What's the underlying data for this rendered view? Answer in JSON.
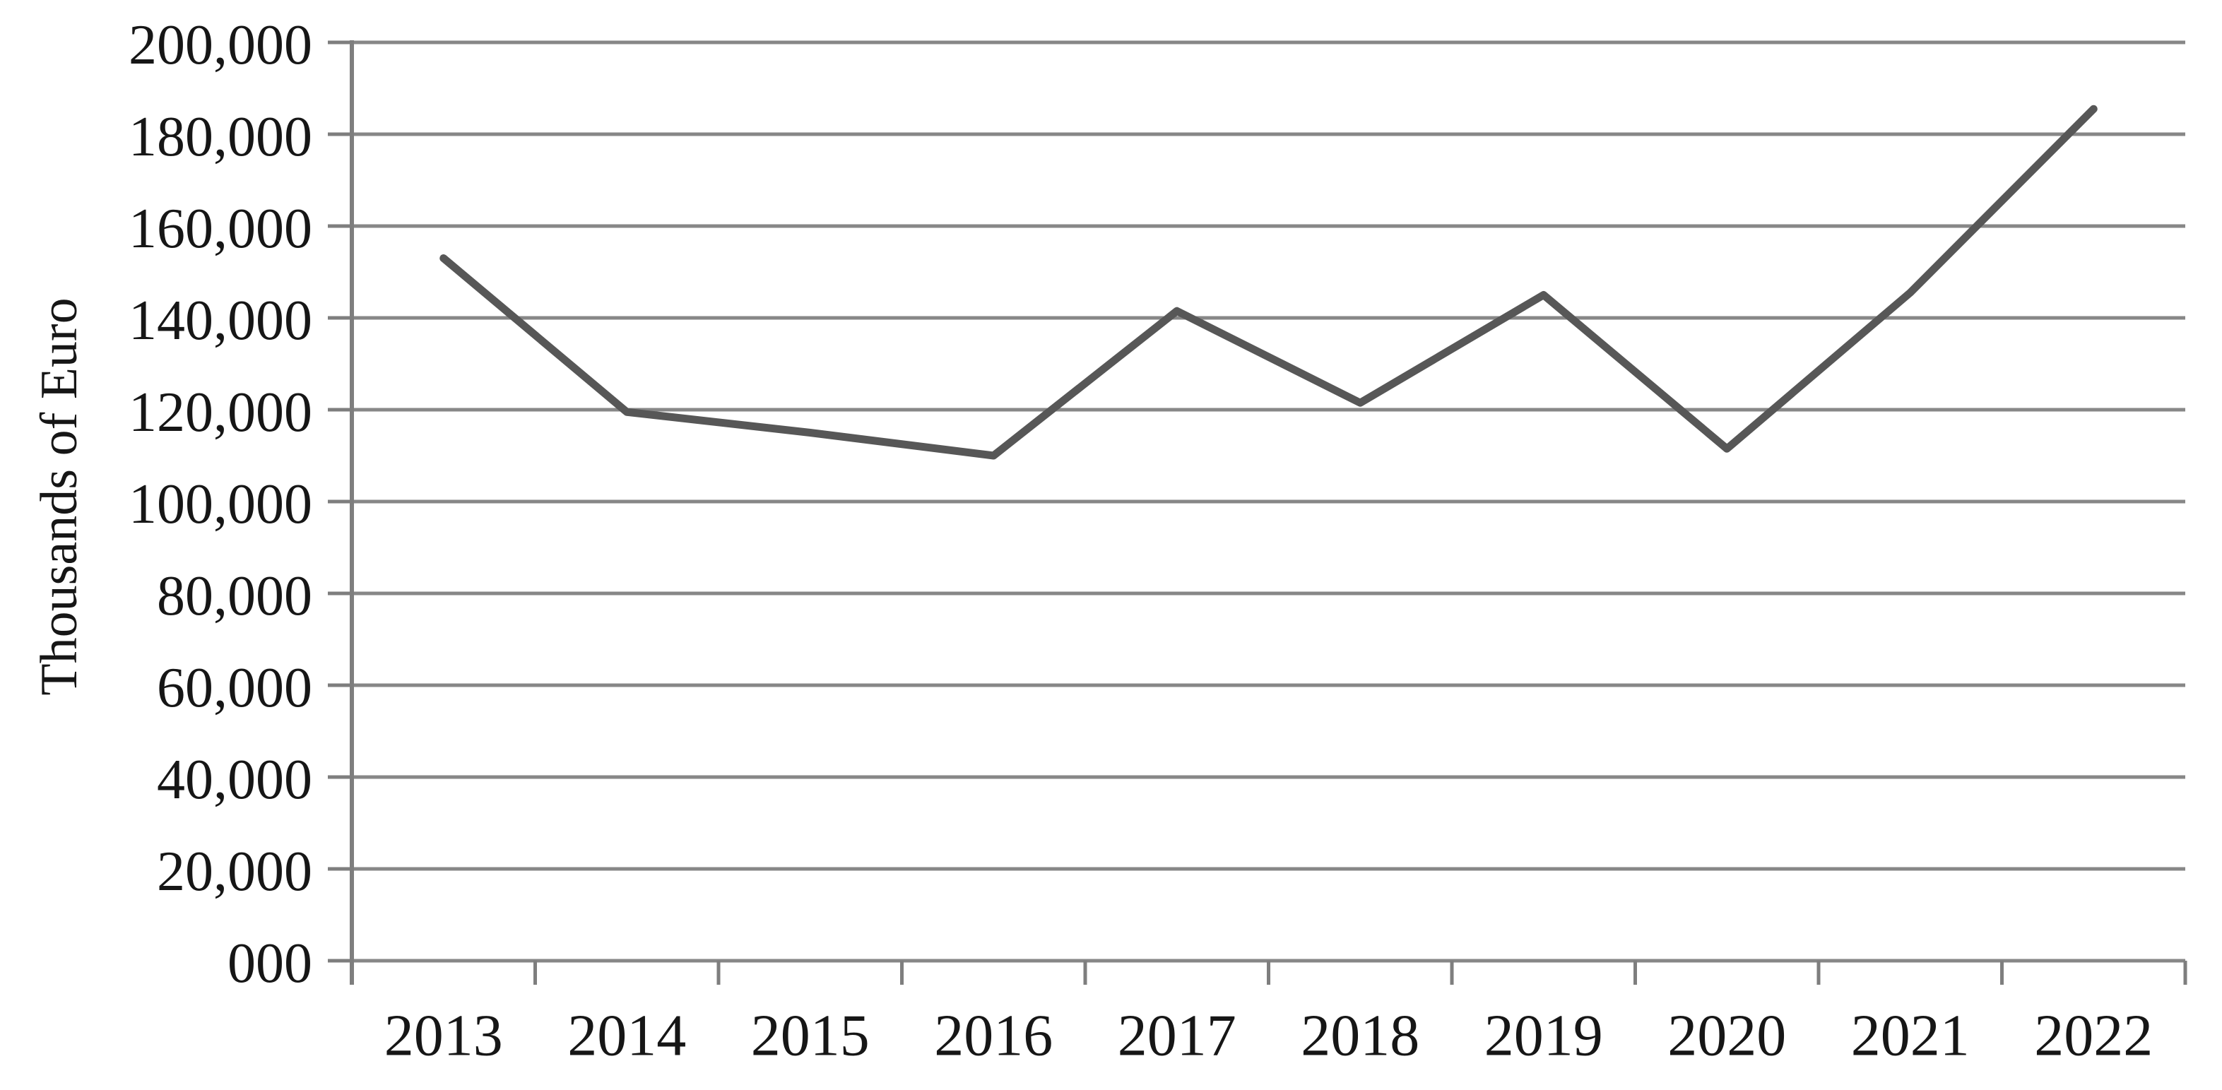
{
  "chart_data": {
    "type": "line",
    "title": "",
    "ylabel": "Thousands of Euro",
    "xlabel": "",
    "categories": [
      "2013",
      "2014",
      "2015",
      "2016",
      "2017",
      "2018",
      "2019",
      "2020",
      "2021",
      "2022"
    ],
    "series": [
      {
        "name": "Thousands of Euro",
        "values": [
          153000,
          119500,
          115000,
          110000,
          141500,
          121500,
          145000,
          111500,
          145500,
          185500
        ]
      }
    ],
    "ylim": [
      0,
      200000
    ],
    "y_step": 20000,
    "y_tick_labels": [
      "200,000",
      "180,000",
      "160,000",
      "140,000",
      "120,000",
      "100,000",
      "80,000",
      "60,000",
      "40,000",
      "20,000",
      "000"
    ],
    "grid": "horizontal",
    "legend_position": "none",
    "colors": {
      "line": "#575757",
      "grid": "#878787",
      "axis": "#7e7e7e",
      "text": "#161616",
      "background": "#ffffff"
    }
  }
}
